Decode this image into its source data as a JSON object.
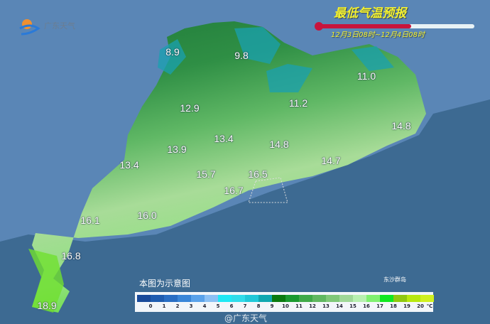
{
  "header": {
    "title": "最低气温预报",
    "period": "12月3日08时~12月4日08时",
    "logo_text": "广东天气",
    "thermometer_color": "#c8143c"
  },
  "map": {
    "values": [
      {
        "label": "8.9"
      },
      {
        "label": "9.8"
      },
      {
        "label": "11.0"
      },
      {
        "label": "12.9"
      },
      {
        "label": "11.2"
      },
      {
        "label": "14.8"
      },
      {
        "label": "13.4"
      },
      {
        "label": "13.9"
      },
      {
        "label": "14.8"
      },
      {
        "label": "13.4"
      },
      {
        "label": "15.7"
      },
      {
        "label": "16.5"
      },
      {
        "label": "14.7"
      },
      {
        "label": "16.7"
      },
      {
        "label": "16.1"
      },
      {
        "label": "16.0"
      },
      {
        "label": "16.8"
      },
      {
        "label": "18.9"
      }
    ],
    "island_label": "东沙群岛",
    "note": "本图为示意图",
    "watermark": "@广东天气",
    "colors": {
      "sea": "#3d6a92",
      "land_outside": "#5a86b6",
      "cold": "#1aa0b0",
      "dark_green": "#1f7a3a",
      "mid_green": "#4aa858",
      "light_green": "#a8dc98",
      "warm": "#6ee040"
    }
  },
  "legend": {
    "unit": "℃",
    "labels": [
      "0",
      "1",
      "2",
      "3",
      "4",
      "5",
      "6",
      "7",
      "8",
      "9",
      "10",
      "11",
      "12",
      "13",
      "14",
      "15",
      "16",
      "17",
      "18",
      "19",
      "20"
    ],
    "colors": [
      "#1a4a9a",
      "#1f5cb0",
      "#2a6ec4",
      "#3a86d8",
      "#5aa2ea",
      "#8cc0f4",
      "#20e8f4",
      "#30dcea",
      "#20c8d8",
      "#10a8b0",
      "#0a7a10",
      "#1a9a30",
      "#40aa48",
      "#60b860",
      "#80c878",
      "#a0d898",
      "#b8f0b0",
      "#80f070",
      "#10e820",
      "#90c810",
      "#b8e810",
      "#d0f020"
    ]
  }
}
